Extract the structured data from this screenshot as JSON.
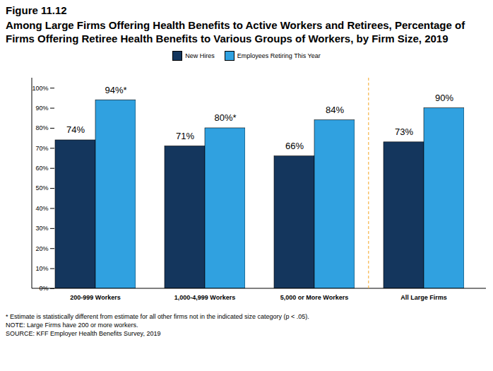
{
  "chart_data": {
    "type": "bar",
    "title": "Figure 11.12",
    "subtitle": "Among Large Firms Offering Health Benefits to Active Workers and Retirees, Percentage of Firms Offering Retiree Health Benefits to Various Groups of Workers, by Firm Size, 2019",
    "categories": [
      "200-999 Workers",
      "1,000-4,999 Workers",
      "5,000 or More Workers",
      "All Large Firms"
    ],
    "series": [
      {
        "name": "New Hires",
        "color": "#14365d",
        "values": [
          74,
          71,
          66,
          73
        ],
        "value_labels": [
          "74%",
          "71%",
          "66%",
          "73%"
        ]
      },
      {
        "name": "Employees Retiring This Year",
        "color": "#30a1e0",
        "values": [
          94,
          80,
          84,
          90
        ],
        "value_labels": [
          "94%*",
          "80%*",
          "84%",
          "90%"
        ]
      }
    ],
    "ylim": [
      0,
      105
    ],
    "yticks": [
      {
        "value": 0,
        "label": "0%"
      },
      {
        "value": 10,
        "label": "10%"
      },
      {
        "value": 20,
        "label": "20%"
      },
      {
        "value": 30,
        "label": "30%"
      },
      {
        "value": 40,
        "label": "40%"
      },
      {
        "value": 50,
        "label": "50%"
      },
      {
        "value": 60,
        "label": "60%"
      },
      {
        "value": 70,
        "label": "70%"
      },
      {
        "value": 80,
        "label": "80%"
      },
      {
        "value": 90,
        "label": "90%"
      },
      {
        "value": 100,
        "label": "100%"
      }
    ],
    "grid": false,
    "legend": "top",
    "data_labels": true,
    "notes": [
      "* Estimate is statistically different from estimate for all other firms not in the indicated size category (p < .05).",
      "NOTE: Large Firms have 200 or more workers.",
      "SOURCE: KFF Employer Health Benefits Survey, 2019"
    ]
  }
}
